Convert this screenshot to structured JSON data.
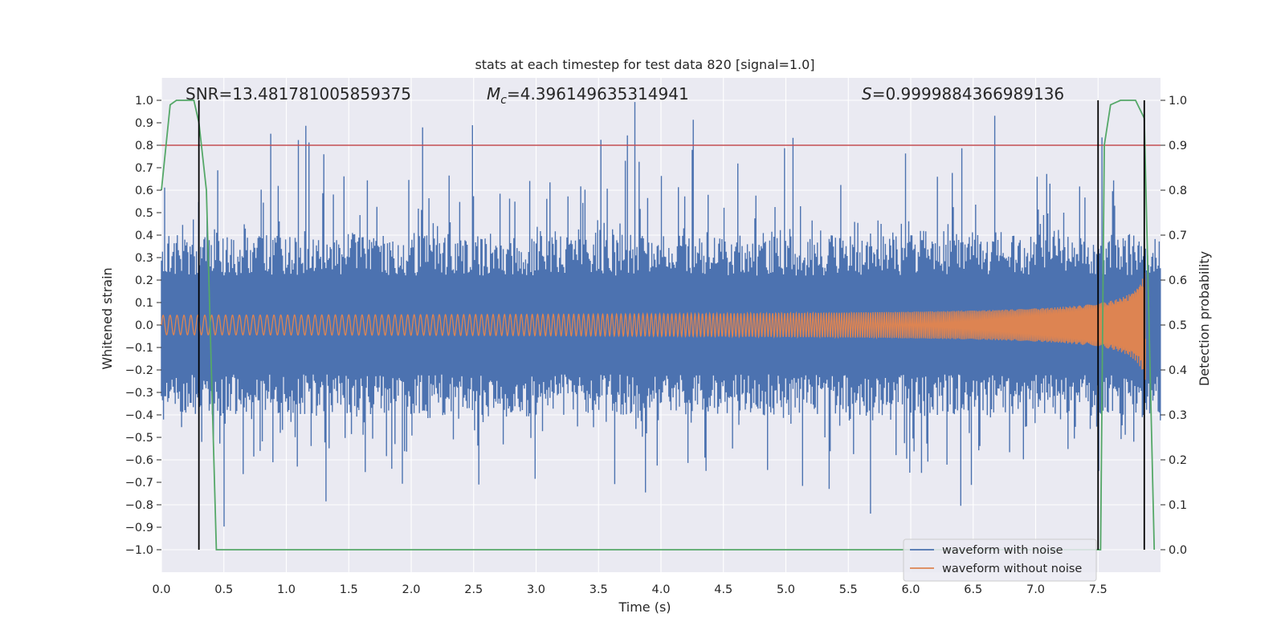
{
  "chart_data": {
    "type": "line",
    "title": "stats at each timestep for test data 820 [signal=1.0]",
    "xlabel": "Time (s)",
    "ylabel_left": "Whitened strain",
    "ylabel_right": "Detection probability",
    "xlim": [
      0.0,
      8.0
    ],
    "ylim_left": [
      -1.1,
      1.1
    ],
    "ylim_right": [
      -0.05,
      1.05
    ],
    "xticks": [
      "0.0",
      "0.5",
      "1.0",
      "1.5",
      "2.0",
      "2.5",
      "3.0",
      "3.5",
      "4.0",
      "4.5",
      "5.0",
      "5.5",
      "6.0",
      "6.5",
      "7.0",
      "7.5"
    ],
    "yticks_left": [
      "1.0",
      "0.9",
      "0.8",
      "0.7",
      "0.6",
      "0.5",
      "0.4",
      "0.3",
      "0.2",
      "0.1",
      "0.0",
      "−0.1",
      "−0.2",
      "−0.3",
      "−0.4",
      "−0.5",
      "−0.6",
      "−0.7",
      "−0.8",
      "−0.9",
      "−1.0"
    ],
    "yticks_right": [
      "1.0",
      "0.9",
      "0.8",
      "0.7",
      "0.6",
      "0.5",
      "0.4",
      "0.3",
      "0.2",
      "0.1",
      "0.0"
    ],
    "grid": true,
    "legend_placement": "lower-right",
    "annotations": {
      "snr": "SNR=13.481781005859375",
      "mc_symbol": "M",
      "mc_sub": "c",
      "mc_value": "=4.396149635314941",
      "s_symbol": "S",
      "s_value": "=0.9999884366989136"
    },
    "series": [
      {
        "name": "waveform with noise",
        "color": "#4c72b0",
        "axis": "left",
        "noise_envelope": 0.4,
        "peak_max": 1.0,
        "peak_min": -1.0
      },
      {
        "name": "waveform without noise",
        "color": "#dd8452",
        "axis": "left",
        "amplitude_start": 0.03,
        "amplitude_end": 0.25,
        "t_end": 7.88
      },
      {
        "name": "detection probability",
        "color": "#55a868",
        "axis": "right",
        "x": [
          0.0,
          0.07,
          0.12,
          0.2,
          0.26,
          0.3,
          0.36,
          0.44,
          7.0,
          7.52,
          7.55,
          7.6,
          7.68,
          7.8,
          7.87,
          7.95
        ],
        "y": [
          0.8,
          0.99,
          1.0,
          1.0,
          1.0,
          0.95,
          0.8,
          0.0,
          0.0,
          0.0,
          0.9,
          0.99,
          1.0,
          1.0,
          0.96,
          0.0
        ]
      }
    ],
    "threshold_line": {
      "value": 0.9,
      "axis": "right",
      "color": "#c44e52"
    },
    "vertical_markers": [
      0.3,
      7.5,
      7.87
    ],
    "colors": {
      "plot_bg": "#eaeaf2",
      "grid": "#ffffff",
      "marker": "#000000"
    }
  }
}
